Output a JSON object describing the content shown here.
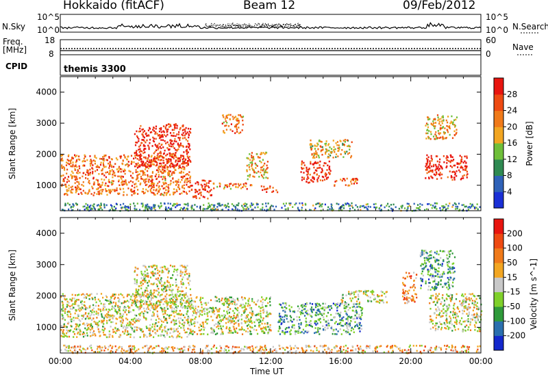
{
  "header": {
    "station": "Hokkaido (fitACF)",
    "beam": "Beam 12",
    "date": "09/Feb/2012"
  },
  "top_panels": {
    "nsky_label": "N.Sky",
    "nsearch_label": "N.Search",
    "freq_label_line1": "Freq.",
    "freq_label_line2": "[MHz]",
    "nave_label": "Nave",
    "cpid_label": "CPID",
    "cpid_value": "themis 3300",
    "noise_tick_top": "10^5",
    "noise_tick_bottom": "10^0",
    "freq_ticks": [
      "18",
      "8"
    ],
    "nave_ticks": [
      "60",
      "0"
    ]
  },
  "chart_data": [
    {
      "type": "heatmap",
      "panel": "power",
      "ylabel": "Slant Range [km]",
      "colorbar_label": "Power [dB]",
      "colorbar_ticks": [
        "28",
        "24",
        "20",
        "16",
        "12",
        "8",
        "4"
      ],
      "yticks": [
        "4000",
        "3000",
        "2000",
        "1000"
      ],
      "ylim": [
        180,
        4500
      ],
      "xlim_hours": [
        0,
        24
      ],
      "colorscale": [
        "#1a2fd6",
        "#2f62b8",
        "#2f8a52",
        "#6fbf3a",
        "#f2a622",
        "#f07a1a",
        "#ee4a12",
        "#e8150f"
      ],
      "regions": [
        {
          "t": [
            0.0,
            7.4
          ],
          "r": [
            700,
            2000
          ],
          "level": 0.72
        },
        {
          "t": [
            4.2,
            7.4
          ],
          "r": [
            1600,
            3000
          ],
          "level": 0.92
        },
        {
          "t": [
            7.4,
            8.6
          ],
          "r": [
            600,
            1200
          ],
          "level": 0.85
        },
        {
          "t": [
            8.6,
            11.0
          ],
          "r": [
            900,
            1100
          ],
          "level": 0.7
        },
        {
          "t": [
            9.2,
            10.4
          ],
          "r": [
            2700,
            3300
          ],
          "level": 0.7
        },
        {
          "t": [
            10.6,
            11.8
          ],
          "r": [
            1200,
            2100
          ],
          "level": 0.6
        },
        {
          "t": [
            11.4,
            12.4
          ],
          "r": [
            800,
            1000
          ],
          "level": 0.85
        },
        {
          "t": [
            13.7,
            15.4
          ],
          "r": [
            1100,
            1800
          ],
          "level": 0.9
        },
        {
          "t": [
            15.6,
            17.0
          ],
          "r": [
            1000,
            1250
          ],
          "level": 0.75
        },
        {
          "t": [
            14.2,
            16.6
          ],
          "r": [
            1900,
            2500
          ],
          "level": 0.55
        },
        {
          "t": [
            20.8,
            23.2
          ],
          "r": [
            1200,
            2000
          ],
          "level": 0.95
        },
        {
          "t": [
            20.8,
            22.6
          ],
          "r": [
            2500,
            3300
          ],
          "level": 0.6
        },
        {
          "t": [
            0.0,
            24.0
          ],
          "r": [
            200,
            450
          ],
          "level": 0.3
        }
      ]
    },
    {
      "type": "heatmap",
      "panel": "velocity",
      "ylabel": "Slant Range [km]",
      "xlabel": "Time UT",
      "colorbar_label": "Velocity [m s^-1]",
      "colorbar_ticks": [
        "200",
        "100",
        "50",
        "15",
        "-15",
        "-50",
        "-100",
        "-200"
      ],
      "yticks": [
        "4000",
        "3000",
        "2000",
        "1000"
      ],
      "xticks": [
        "00:00",
        "04:00",
        "08:00",
        "12:00",
        "16:00",
        "20:00",
        "00:00"
      ],
      "ylim": [
        180,
        4500
      ],
      "xlim_hours": [
        0,
        24
      ],
      "colorscale": [
        "#1428cc",
        "#2a6fae",
        "#2f9a3a",
        "#7fd02a",
        "#c8c8c8",
        "#f2a622",
        "#f07a1a",
        "#ee4a12",
        "#e8150f"
      ],
      "regions": [
        {
          "t": [
            0.0,
            7.4
          ],
          "r": [
            700,
            2100
          ],
          "level": 0.5
        },
        {
          "t": [
            4.2,
            7.4
          ],
          "r": [
            1600,
            3000
          ],
          "level": 0.5
        },
        {
          "t": [
            7.4,
            12.0
          ],
          "r": [
            800,
            2000
          ],
          "level": 0.5
        },
        {
          "t": [
            12.4,
            17.2
          ],
          "r": [
            800,
            1800
          ],
          "level": 0.3
        },
        {
          "t": [
            16.0,
            18.6
          ],
          "r": [
            1800,
            2200
          ],
          "level": 0.5
        },
        {
          "t": [
            19.5,
            20.3
          ],
          "r": [
            1800,
            2800
          ],
          "level": 0.7
        },
        {
          "t": [
            20.5,
            22.5
          ],
          "r": [
            2200,
            3500
          ],
          "level": 0.3
        },
        {
          "t": [
            21.0,
            24.0
          ],
          "r": [
            900,
            2100
          ],
          "level": 0.5
        },
        {
          "t": [
            0.0,
            24.0
          ],
          "r": [
            200,
            450
          ],
          "level": 0.62
        }
      ]
    }
  ]
}
